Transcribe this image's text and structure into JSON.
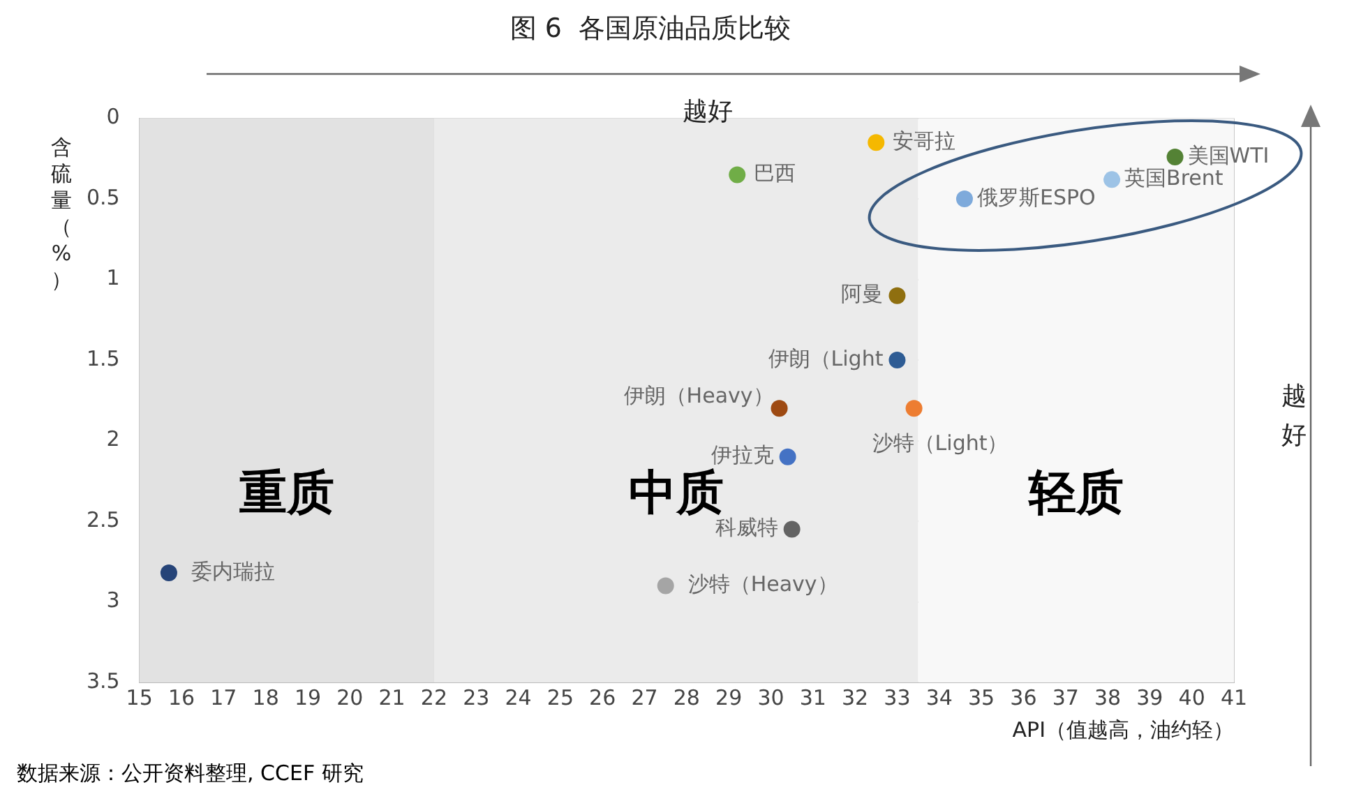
{
  "chart_data": {
    "type": "scatter",
    "title": "图 6  各国原油品质比较",
    "xlabel": "API（值越高，油约轻）",
    "ylabel": "含硫量（%）",
    "xlim": [
      15,
      41
    ],
    "xticks": [
      15,
      16,
      17,
      18,
      19,
      20,
      21,
      22,
      23,
      24,
      25,
      26,
      27,
      28,
      29,
      30,
      31,
      32,
      33,
      34,
      35,
      36,
      37,
      38,
      39,
      40,
      41
    ],
    "ylim": [
      3.5,
      0
    ],
    "yticks": [
      0,
      0.5,
      1,
      1.5,
      2,
      2.5,
      3,
      3.5
    ],
    "grid": true,
    "legend": false,
    "marker": "circle",
    "series": [
      {
        "name": "安哥拉",
        "color": "#f5b800",
        "x": [
          32.5
        ],
        "values": [
          0.15
        ]
      },
      {
        "name": "巴西",
        "color": "#70ad47",
        "x": [
          29.2
        ],
        "values": [
          0.35
        ]
      },
      {
        "name": "美国WTI",
        "color": "#548235",
        "x": [
          39.6
        ],
        "values": [
          0.24
        ]
      },
      {
        "name": "英国Brent",
        "color": "#9dc3e6",
        "x": [
          38.1
        ],
        "values": [
          0.38
        ]
      },
      {
        "name": "俄罗斯ESPO",
        "color": "#7eaadb",
        "x": [
          34.6
        ],
        "values": [
          0.5
        ]
      },
      {
        "name": "阿曼",
        "color": "#8f6f0f",
        "x": [
          33
        ],
        "values": [
          1.1
        ]
      },
      {
        "name": "伊朗（Light",
        "color": "#2e5c94",
        "x": [
          33
        ],
        "values": [
          1.5
        ]
      },
      {
        "name": "伊朗（Heavy）",
        "color": "#9e4a12",
        "x": [
          30.2
        ],
        "values": [
          1.8
        ]
      },
      {
        "name": "沙特（Light）",
        "color": "#ed7d31",
        "x": [
          33.4
        ],
        "values": [
          1.8
        ]
      },
      {
        "name": "伊拉克",
        "color": "#4472c4",
        "x": [
          30.4
        ],
        "values": [
          2.1
        ]
      },
      {
        "name": "科威特",
        "color": "#636363",
        "x": [
          30.5
        ],
        "values": [
          2.55
        ]
      },
      {
        "name": "沙特（Heavy）",
        "color": "#a5a5a5",
        "x": [
          27.5
        ],
        "values": [
          2.9
        ]
      },
      {
        "name": "委内瑞拉",
        "color": "#264478",
        "x": [
          15.7
        ],
        "values": [
          2.82
        ]
      }
    ],
    "bands": [
      {
        "axis": "x",
        "from": 15,
        "to": 22,
        "label": "重质",
        "color": "#e2e2e2"
      },
      {
        "axis": "x",
        "from": 22,
        "to": 33.5,
        "label": "中质",
        "color": "#ebebeb"
      },
      {
        "axis": "x",
        "from": 33.5,
        "to": 41,
        "label": "轻质",
        "color": "#f8f8f8"
      }
    ],
    "annotations": [
      "越好",
      "越好",
      "数据来源：公开资料整理, CCEF 研究"
    ]
  }
}
